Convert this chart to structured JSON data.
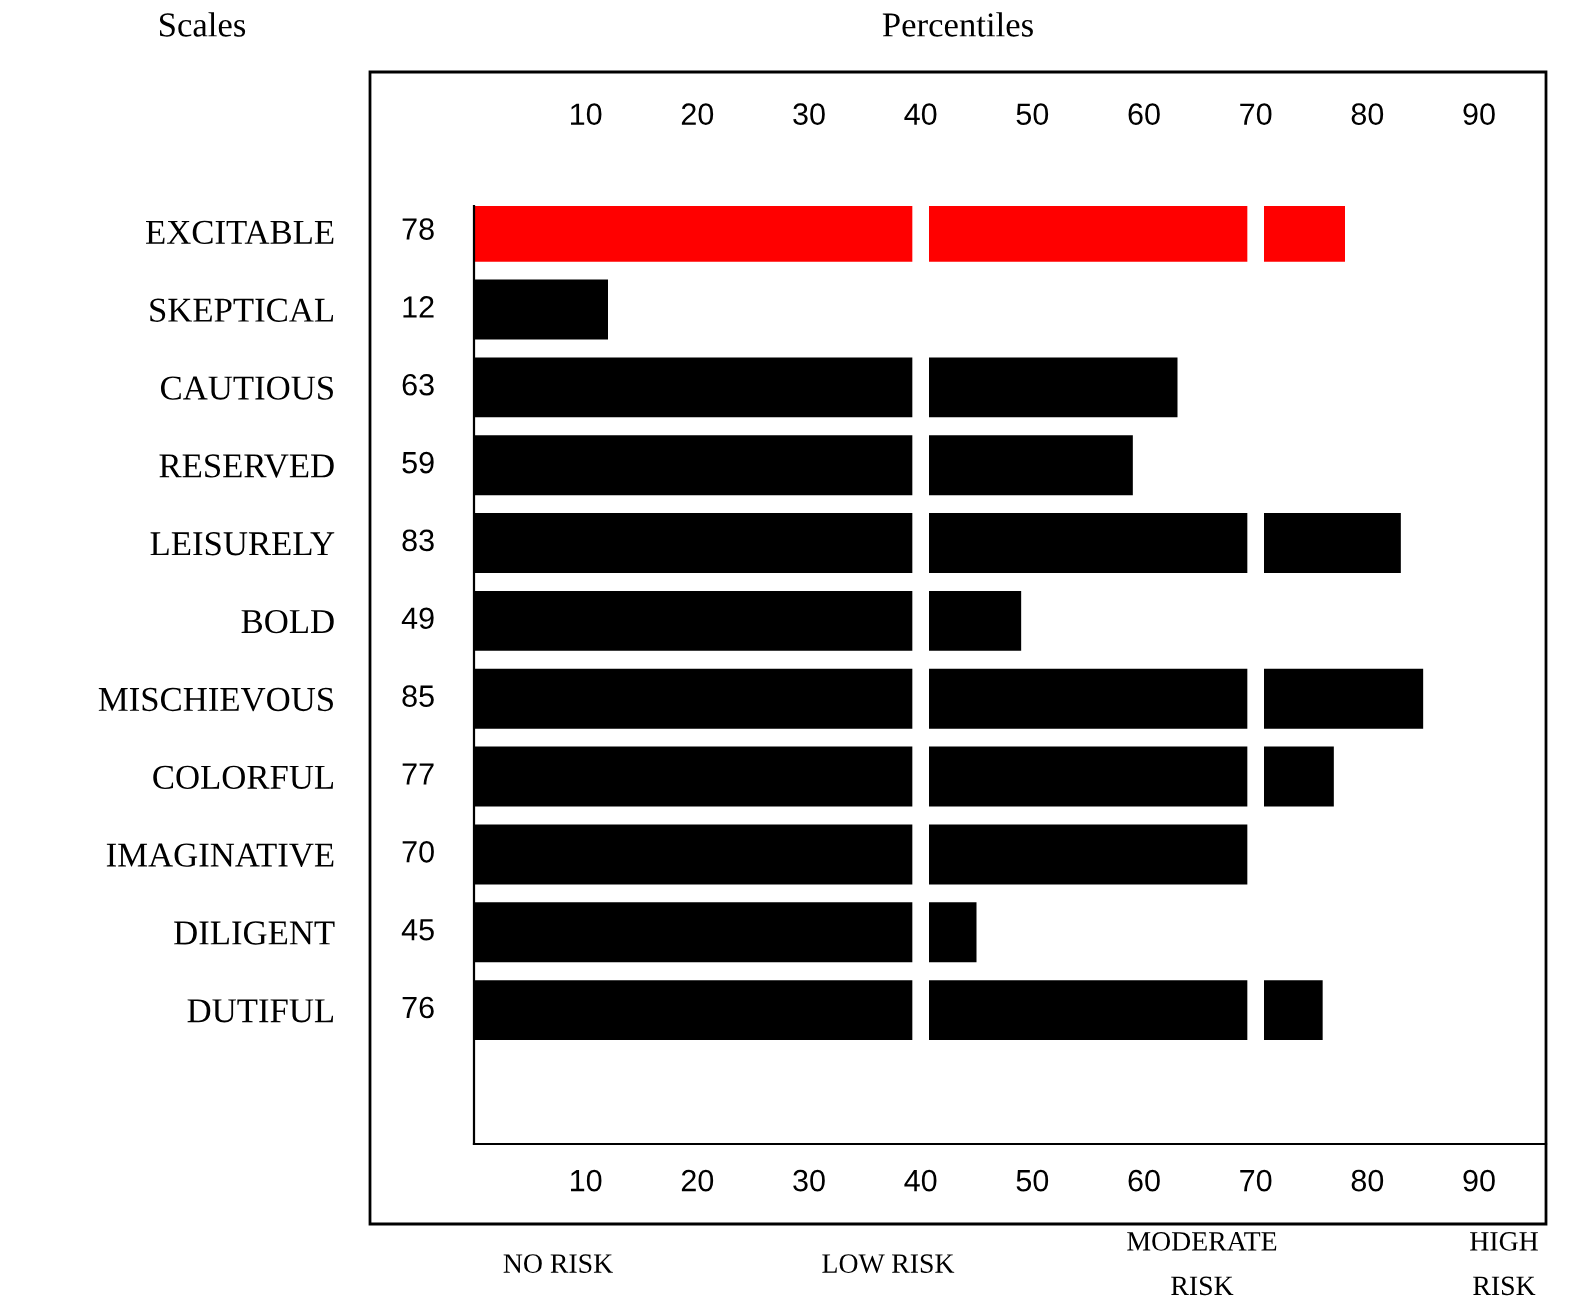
{
  "chart_data": {
    "type": "bar",
    "orientation": "horizontal",
    "title": "Percentiles",
    "ylabel": "Scales",
    "categories": [
      "EXCITABLE",
      "SKEPTICAL",
      "CAUTIOUS",
      "RESERVED",
      "LEISURELY",
      "BOLD",
      "MISCHIEVOUS",
      "COLORFUL",
      "IMAGINATIVE",
      "DILIGENT",
      "DUTIFUL"
    ],
    "values": [
      78,
      12,
      63,
      59,
      83,
      49,
      85,
      77,
      70,
      45,
      76
    ],
    "colors": [
      "#ff0000",
      "#000000",
      "#000000",
      "#000000",
      "#000000",
      "#000000",
      "#000000",
      "#000000",
      "#000000",
      "#000000",
      "#000000"
    ],
    "data_labels": true,
    "xlim": [
      0,
      96
    ],
    "xticks": [
      10,
      20,
      30,
      40,
      50,
      60,
      70,
      80,
      90
    ],
    "x2lim": [
      0,
      96
    ],
    "x2ticks": [
      10,
      20,
      30,
      40,
      50,
      60,
      70,
      80,
      90
    ],
    "ref_lines": [
      {
        "axis": "x",
        "value": 40,
        "color": "#ffffff"
      },
      {
        "axis": "x",
        "value": 70,
        "color": "#ffffff"
      }
    ],
    "grid": false,
    "annotations": [
      "NO RISK",
      "LOW RISK",
      "MODERATE\nRISK",
      "HIGH\nRISK"
    ]
  }
}
